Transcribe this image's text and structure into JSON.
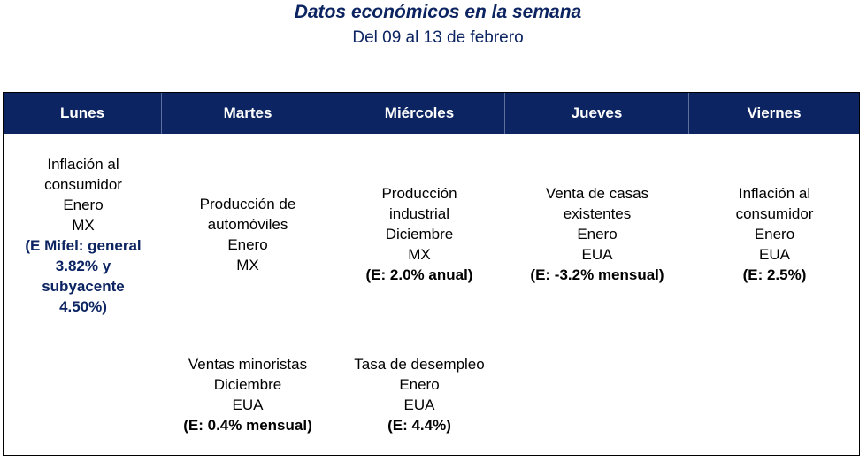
{
  "title": "Datos económicos en la semana",
  "subtitle": "Del 09 al 13 de febrero",
  "days": [
    "Lunes",
    "Martes",
    "Miércoles",
    "Jueves",
    "Viernes"
  ],
  "events": {
    "lunes_1": {
      "lines": [
        "Inflación al",
        "consumidor",
        "Enero",
        "MX"
      ],
      "estimate": [
        "(E Mifel: general",
        "3.82% y",
        "subyacente",
        "4.50%)"
      ]
    },
    "martes_1": {
      "lines": [
        "Producción de",
        "automóviles",
        "Enero",
        "MX"
      ]
    },
    "martes_2": {
      "lines": [
        "Ventas minoristas",
        "Diciembre",
        "EUA"
      ],
      "estimate": "(E: 0.4% mensual)"
    },
    "miercoles_1": {
      "lines": [
        "Producción",
        "industrial",
        "Diciembre",
        "MX"
      ],
      "estimate": "(E: 2.0% anual)"
    },
    "miercoles_2": {
      "lines": [
        "Tasa de desempleo",
        "Enero",
        "EUA"
      ],
      "estimate": "(E: 4.4%)"
    },
    "jueves_1": {
      "lines": [
        "Venta de casas",
        "existentes",
        "Enero",
        "EUA"
      ],
      "estimate": "(E: -3.2% mensual)"
    },
    "viernes_1": {
      "lines": [
        "Inflación al",
        "consumidor",
        "Enero",
        "EUA"
      ],
      "estimate": "(E: 2.5%)"
    }
  }
}
